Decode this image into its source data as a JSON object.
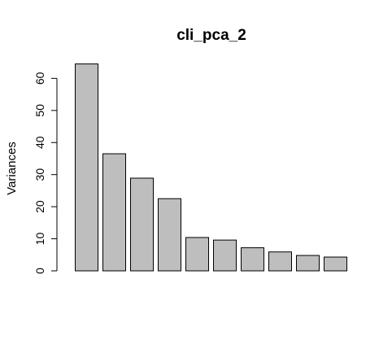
{
  "chart_data": {
    "type": "bar",
    "title": "cli_pca_2",
    "xlabel": "",
    "ylabel": "Variances",
    "ylim": [
      0,
      64.5
    ],
    "yticks": [
      0,
      10,
      20,
      30,
      40,
      50,
      60
    ],
    "values": [
      64.5,
      36.5,
      28.9,
      22.5,
      10.4,
      9.6,
      7.2,
      5.9,
      4.8,
      4.3
    ],
    "bar_fill": "#bebebe",
    "bar_stroke": "#000000",
    "grid": false,
    "legend": "none"
  }
}
